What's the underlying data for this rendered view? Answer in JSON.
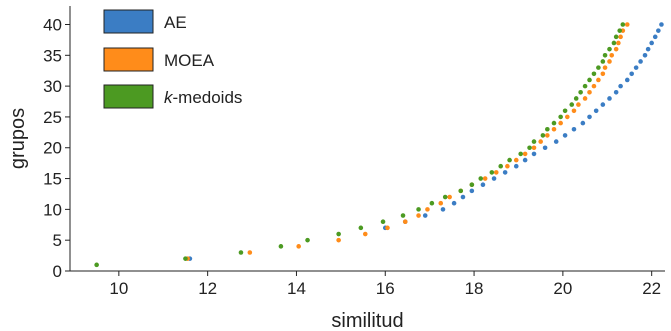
{
  "chart_data": {
    "type": "scatter",
    "xlabel": "similitud",
    "ylabel": "grupos",
    "xlim": [
      8.9,
      22.3
    ],
    "ylim": [
      0,
      43
    ],
    "xticks": [
      10,
      12,
      14,
      16,
      18,
      20,
      22
    ],
    "yticks": [
      0,
      5,
      10,
      15,
      20,
      25,
      30,
      35,
      40
    ],
    "grid": false,
    "legend_position": "top-left",
    "series": [
      {
        "name": "AE",
        "color": "#3b7dc4",
        "points": [
          [
            11.6,
            2
          ],
          [
            16.0,
            7
          ],
          [
            16.45,
            8
          ],
          [
            16.9,
            9
          ],
          [
            17.3,
            10
          ],
          [
            17.55,
            11
          ],
          [
            17.75,
            12
          ],
          [
            17.95,
            13
          ],
          [
            18.2,
            14
          ],
          [
            18.45,
            15
          ],
          [
            18.7,
            16
          ],
          [
            18.95,
            17
          ],
          [
            19.15,
            18
          ],
          [
            19.35,
            19
          ],
          [
            19.6,
            20
          ],
          [
            19.85,
            21
          ],
          [
            20.05,
            22
          ],
          [
            20.25,
            23
          ],
          [
            20.45,
            24
          ],
          [
            20.6,
            25
          ],
          [
            20.75,
            26
          ],
          [
            20.9,
            27
          ],
          [
            21.05,
            28
          ],
          [
            21.2,
            29
          ],
          [
            21.3,
            30
          ],
          [
            21.45,
            31
          ],
          [
            21.55,
            32
          ],
          [
            21.65,
            33
          ],
          [
            21.75,
            34
          ],
          [
            21.85,
            35
          ],
          [
            21.92,
            36
          ],
          [
            22.0,
            37
          ],
          [
            22.08,
            38
          ],
          [
            22.15,
            39
          ],
          [
            22.22,
            40
          ]
        ]
      },
      {
        "name": "MOEA",
        "color": "#ff8c1a",
        "points": [
          [
            11.55,
            2
          ],
          [
            12.95,
            3
          ],
          [
            14.05,
            4
          ],
          [
            14.95,
            5
          ],
          [
            15.55,
            6
          ],
          [
            16.05,
            7
          ],
          [
            16.45,
            8
          ],
          [
            16.75,
            9
          ],
          [
            16.95,
            10
          ],
          [
            17.25,
            11
          ],
          [
            17.45,
            12
          ],
          [
            17.7,
            13
          ],
          [
            17.95,
            14
          ],
          [
            18.25,
            15
          ],
          [
            18.5,
            16
          ],
          [
            18.75,
            17
          ],
          [
            18.95,
            18
          ],
          [
            19.15,
            19
          ],
          [
            19.35,
            20
          ],
          [
            19.5,
            21
          ],
          [
            19.65,
            22
          ],
          [
            19.8,
            23
          ],
          [
            19.95,
            24
          ],
          [
            20.1,
            25
          ],
          [
            20.25,
            26
          ],
          [
            20.35,
            27
          ],
          [
            20.5,
            28
          ],
          [
            20.6,
            29
          ],
          [
            20.7,
            30
          ],
          [
            20.8,
            31
          ],
          [
            20.9,
            32
          ],
          [
            20.95,
            33
          ],
          [
            21.05,
            34
          ],
          [
            21.1,
            35
          ],
          [
            21.2,
            36
          ],
          [
            21.25,
            37
          ],
          [
            21.3,
            38
          ],
          [
            21.35,
            39
          ],
          [
            21.45,
            40
          ]
        ]
      },
      {
        "name": "k-medoids",
        "color": "#4c9a22",
        "points": [
          [
            9.5,
            1
          ],
          [
            11.5,
            2
          ],
          [
            12.75,
            3
          ],
          [
            13.65,
            4
          ],
          [
            14.25,
            5
          ],
          [
            14.95,
            6
          ],
          [
            15.45,
            7
          ],
          [
            15.95,
            8
          ],
          [
            16.4,
            9
          ],
          [
            16.75,
            10
          ],
          [
            17.05,
            11
          ],
          [
            17.35,
            12
          ],
          [
            17.7,
            13
          ],
          [
            17.95,
            14
          ],
          [
            18.15,
            15
          ],
          [
            18.4,
            16
          ],
          [
            18.6,
            17
          ],
          [
            18.8,
            18
          ],
          [
            19.05,
            19
          ],
          [
            19.25,
            20
          ],
          [
            19.35,
            21
          ],
          [
            19.55,
            22
          ],
          [
            19.65,
            23
          ],
          [
            19.8,
            24
          ],
          [
            19.95,
            25
          ],
          [
            20.05,
            26
          ],
          [
            20.2,
            27
          ],
          [
            20.3,
            28
          ],
          [
            20.4,
            29
          ],
          [
            20.5,
            30
          ],
          [
            20.6,
            31
          ],
          [
            20.7,
            32
          ],
          [
            20.8,
            33
          ],
          [
            20.9,
            34
          ],
          [
            20.95,
            35
          ],
          [
            21.05,
            36
          ],
          [
            21.15,
            37
          ],
          [
            21.2,
            38
          ],
          [
            21.28,
            39
          ],
          [
            21.35,
            40
          ]
        ]
      }
    ]
  },
  "legend": {
    "items": [
      {
        "label": "AE",
        "color": "#3b7dc4"
      },
      {
        "label": "MOEA",
        "color": "#ff8c1a"
      },
      {
        "label_italic": "k",
        "label_rest": "-medoids",
        "color": "#4c9a22"
      }
    ]
  }
}
